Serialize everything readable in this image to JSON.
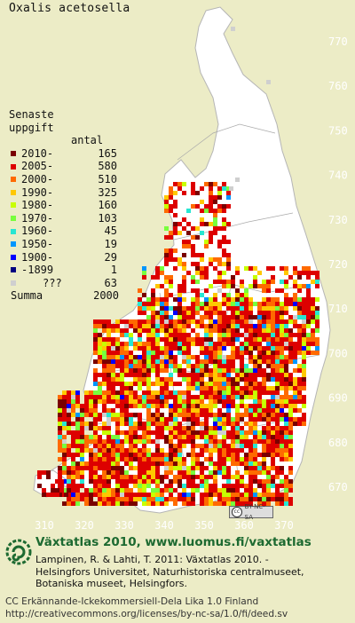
{
  "species": "Oxalis acetosella",
  "legend": {
    "title_line1": "Senaste",
    "title_line2": "uppgift",
    "count_header": "antal",
    "rows": [
      {
        "label": "2010-",
        "count": "165",
        "color": "#7a0000"
      },
      {
        "label": "2005-",
        "count": "580",
        "color": "#dd0000"
      },
      {
        "label": "2000-",
        "count": "510",
        "color": "#ff6a00"
      },
      {
        "label": "1990-",
        "count": "325",
        "color": "#ffc800"
      },
      {
        "label": "1980-",
        "count": "160",
        "color": "#c8ff00"
      },
      {
        "label": "1970-",
        "count": "103",
        "color": "#78ff3c"
      },
      {
        "label": "1960-",
        "count": "45",
        "color": "#28e6d2"
      },
      {
        "label": "1950-",
        "count": "19",
        "color": "#0096ff"
      },
      {
        "label": "1900-",
        "count": "29",
        "color": "#0000ff"
      },
      {
        "label": "-1899",
        "count": "1",
        "color": "#000080"
      },
      {
        "label": "???",
        "count": "63",
        "color": "#cfcfcf"
      }
    ],
    "sum_label": "Summa",
    "sum_count": "2000"
  },
  "axes": {
    "x_ticks": [
      "310",
      "320",
      "330",
      "340",
      "350",
      "360",
      "370"
    ],
    "y_ticks": [
      "770",
      "760",
      "750",
      "740",
      "730",
      "720",
      "710",
      "700",
      "690",
      "680",
      "670"
    ]
  },
  "map_colors": {
    "land": "#ffffff",
    "sea": "#ececc6",
    "outline": "#b5b5b5",
    "tick_text": "#ffffff"
  },
  "cc_badge": "BY-NC-SA",
  "atlas_line": "Växtatlas 2010, www.luomus.fi/vaxtatlas",
  "citation": [
    "Lampinen, R. & Lahti, T. 2011: Växtatlas 2010. -",
    "Helsingfors Universitet, Naturhistoriska centralmuseet,",
    "Botaniska museet, Helsingfors."
  ],
  "license": [
    "CC Erkännande-Ickekommersiell-Dela Lika 1.0 Finland",
    "http://creativecommons.org/licenses/by-nc-sa/1.0/fi/deed.sv"
  ]
}
